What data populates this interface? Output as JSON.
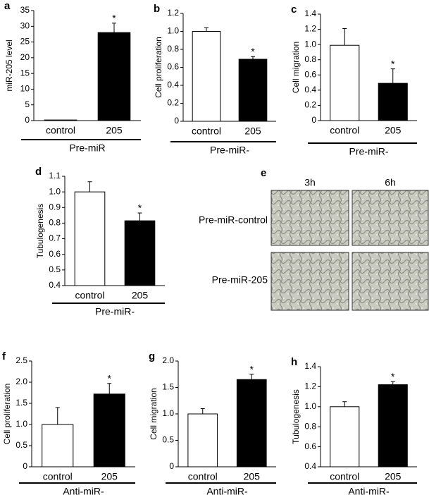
{
  "chart_data": [
    {
      "type": "bar",
      "letter": "a",
      "ylabel": "miR-205 level",
      "categories": [
        "control",
        "205"
      ],
      "values": [
        0.2,
        28
      ],
      "errors": [
        0,
        3
      ],
      "colors": [
        "#ffffff",
        "#000000"
      ],
      "ylim": [
        0,
        35
      ],
      "yticks": [
        0,
        5,
        10,
        15,
        20,
        25,
        30,
        35
      ],
      "annotation": "*",
      "group_label": "Pre-miR"
    },
    {
      "type": "bar",
      "letter": "b",
      "ylabel": "Cell proliferation",
      "categories": [
        "control",
        "205"
      ],
      "values": [
        1.0,
        0.69
      ],
      "errors": [
        0.04,
        0.03
      ],
      "colors": [
        "#ffffff",
        "#000000"
      ],
      "ylim": [
        0,
        1.2
      ],
      "yticks": [
        0,
        0.2,
        0.4,
        0.6,
        0.8,
        {
          "value": 1,
          "label": "1.0"
        },
        1.2
      ],
      "annotation": "*",
      "group_label": "Pre-miR-"
    },
    {
      "type": "bar",
      "letter": "c",
      "ylabel": "Cell migration",
      "categories": [
        "control",
        "205"
      ],
      "values": [
        0.99,
        0.49
      ],
      "errors": [
        0.22,
        0.19
      ],
      "colors": [
        "#ffffff",
        "#000000"
      ],
      "ylim": [
        0,
        1.4
      ],
      "yticks": [
        0,
        0.2,
        0.4,
        0.6,
        0.8,
        {
          "value": 1,
          "label": "1.0"
        },
        1.2,
        1.4
      ],
      "annotation": "*",
      "group_label": "Pre-miR-"
    },
    {
      "type": "bar",
      "letter": "d",
      "ylabel": "Tubulogenesis",
      "categories": [
        "control",
        "205"
      ],
      "values": [
        1.0,
        0.815
      ],
      "errors": [
        0.065,
        0.05
      ],
      "colors": [
        "#ffffff",
        "#000000"
      ],
      "ylim": [
        0.4,
        1.1
      ],
      "yticks": [
        0.4,
        0.5,
        0.6,
        0.7,
        0.8,
        0.9,
        {
          "value": 1,
          "label": "1.0"
        },
        1.1
      ],
      "annotation": "*",
      "group_label": "Pre-miR-"
    },
    {
      "type": "bar",
      "letter": "f",
      "ylabel": "Cell proliferation",
      "categories": [
        "control",
        "205"
      ],
      "values": [
        1.0,
        1.72
      ],
      "errors": [
        0.4,
        0.25
      ],
      "colors": [
        "#ffffff",
        "#000000"
      ],
      "ylim": [
        0,
        2.5
      ],
      "yticks": [
        0,
        0.5,
        {
          "value": 1,
          "label": "1.0"
        },
        1.5,
        {
          "value": 2,
          "label": "2.0"
        },
        2.5
      ],
      "annotation": "*",
      "group_label": "Anti-miR-"
    },
    {
      "type": "bar",
      "letter": "g",
      "ylabel": "Cell migration",
      "categories": [
        "control",
        "205"
      ],
      "values": [
        1.0,
        1.65
      ],
      "errors": [
        0.1,
        0.1
      ],
      "colors": [
        "#ffffff",
        "#000000"
      ],
      "ylim": [
        0,
        2.0
      ],
      "yticks": [
        0,
        0.5,
        {
          "value": 1,
          "label": "1.0"
        },
        1.5,
        {
          "value": 2,
          "label": "2.0"
        }
      ],
      "annotation": "*",
      "group_label": "Anti-miR-"
    },
    {
      "type": "bar",
      "letter": "h",
      "ylabel": "Tubulogenesis",
      "categories": [
        "control",
        "205"
      ],
      "values": [
        1.0,
        1.22
      ],
      "errors": [
        0.05,
        0.03
      ],
      "colors": [
        "#ffffff",
        "#000000"
      ],
      "ylim": [
        0.4,
        1.4
      ],
      "yticks": [
        0.4,
        0.6,
        0.8,
        {
          "value": 1,
          "label": "1.0"
        },
        1.2,
        1.4
      ],
      "annotation": "*",
      "group_label": "Anti-miR-"
    }
  ],
  "image_panel": {
    "letter": "e",
    "columns": [
      "3h",
      "6h"
    ],
    "rows": [
      "Pre-miR-control",
      "Pre-miR-205"
    ]
  }
}
